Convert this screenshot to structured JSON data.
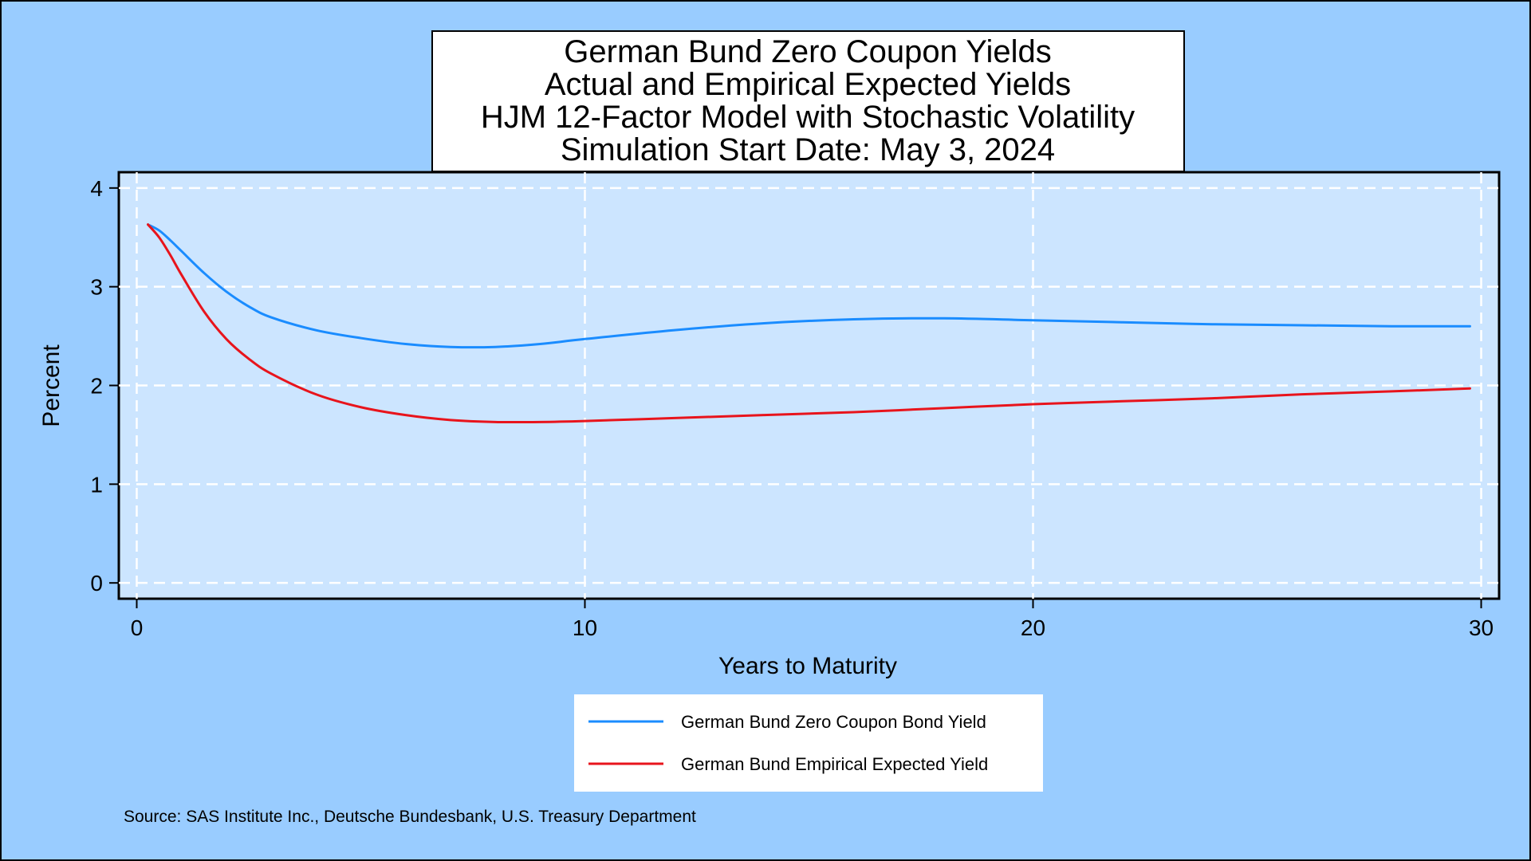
{
  "chart_data": {
    "type": "line",
    "title_lines": [
      "German Bund Zero Coupon Yields",
      "Actual and Empirical Expected Yields",
      "HJM 12-Factor Model with Stochastic Volatility",
      "Simulation Start Date: May 3, 2024"
    ],
    "xlabel": "Years to Maturity",
    "ylabel": "Percent",
    "xlim": [
      -0.4,
      30.4
    ],
    "ylim": [
      -0.16,
      4.16
    ],
    "xticks": [
      0,
      10,
      20,
      30
    ],
    "yticks": [
      0,
      1,
      2,
      3,
      4
    ],
    "grid": true,
    "legend_position": "bottom-center",
    "source": "Source: SAS Institute Inc., Deutsche Bundesbank, U.S. Treasury Department",
    "series": [
      {
        "name": "German Bund Zero Coupon Bond Yield",
        "color": "#1a8cff",
        "x": [
          0.25,
          0.5,
          0.75,
          1,
          1.5,
          2,
          2.5,
          3,
          4,
          5,
          6,
          7,
          8,
          9,
          10,
          12,
          14,
          16,
          18,
          20,
          22,
          24,
          26,
          28,
          29.75
        ],
        "y": [
          3.63,
          3.57,
          3.47,
          3.36,
          3.14,
          2.95,
          2.8,
          2.69,
          2.56,
          2.48,
          2.42,
          2.39,
          2.39,
          2.42,
          2.47,
          2.56,
          2.63,
          2.67,
          2.68,
          2.66,
          2.64,
          2.62,
          2.61,
          2.6,
          2.6
        ]
      },
      {
        "name": "German Bund Empirical Expected Yield",
        "color": "#e8141c",
        "x": [
          0.25,
          0.5,
          0.75,
          1,
          1.5,
          2,
          2.5,
          3,
          4,
          5,
          6,
          7,
          8,
          9,
          10,
          12,
          14,
          16,
          18,
          20,
          22,
          24,
          26,
          28,
          29.75
        ],
        "y": [
          3.63,
          3.5,
          3.32,
          3.12,
          2.75,
          2.47,
          2.27,
          2.12,
          1.91,
          1.78,
          1.7,
          1.65,
          1.63,
          1.63,
          1.64,
          1.67,
          1.7,
          1.73,
          1.77,
          1.81,
          1.84,
          1.87,
          1.91,
          1.94,
          1.97
        ]
      }
    ]
  }
}
